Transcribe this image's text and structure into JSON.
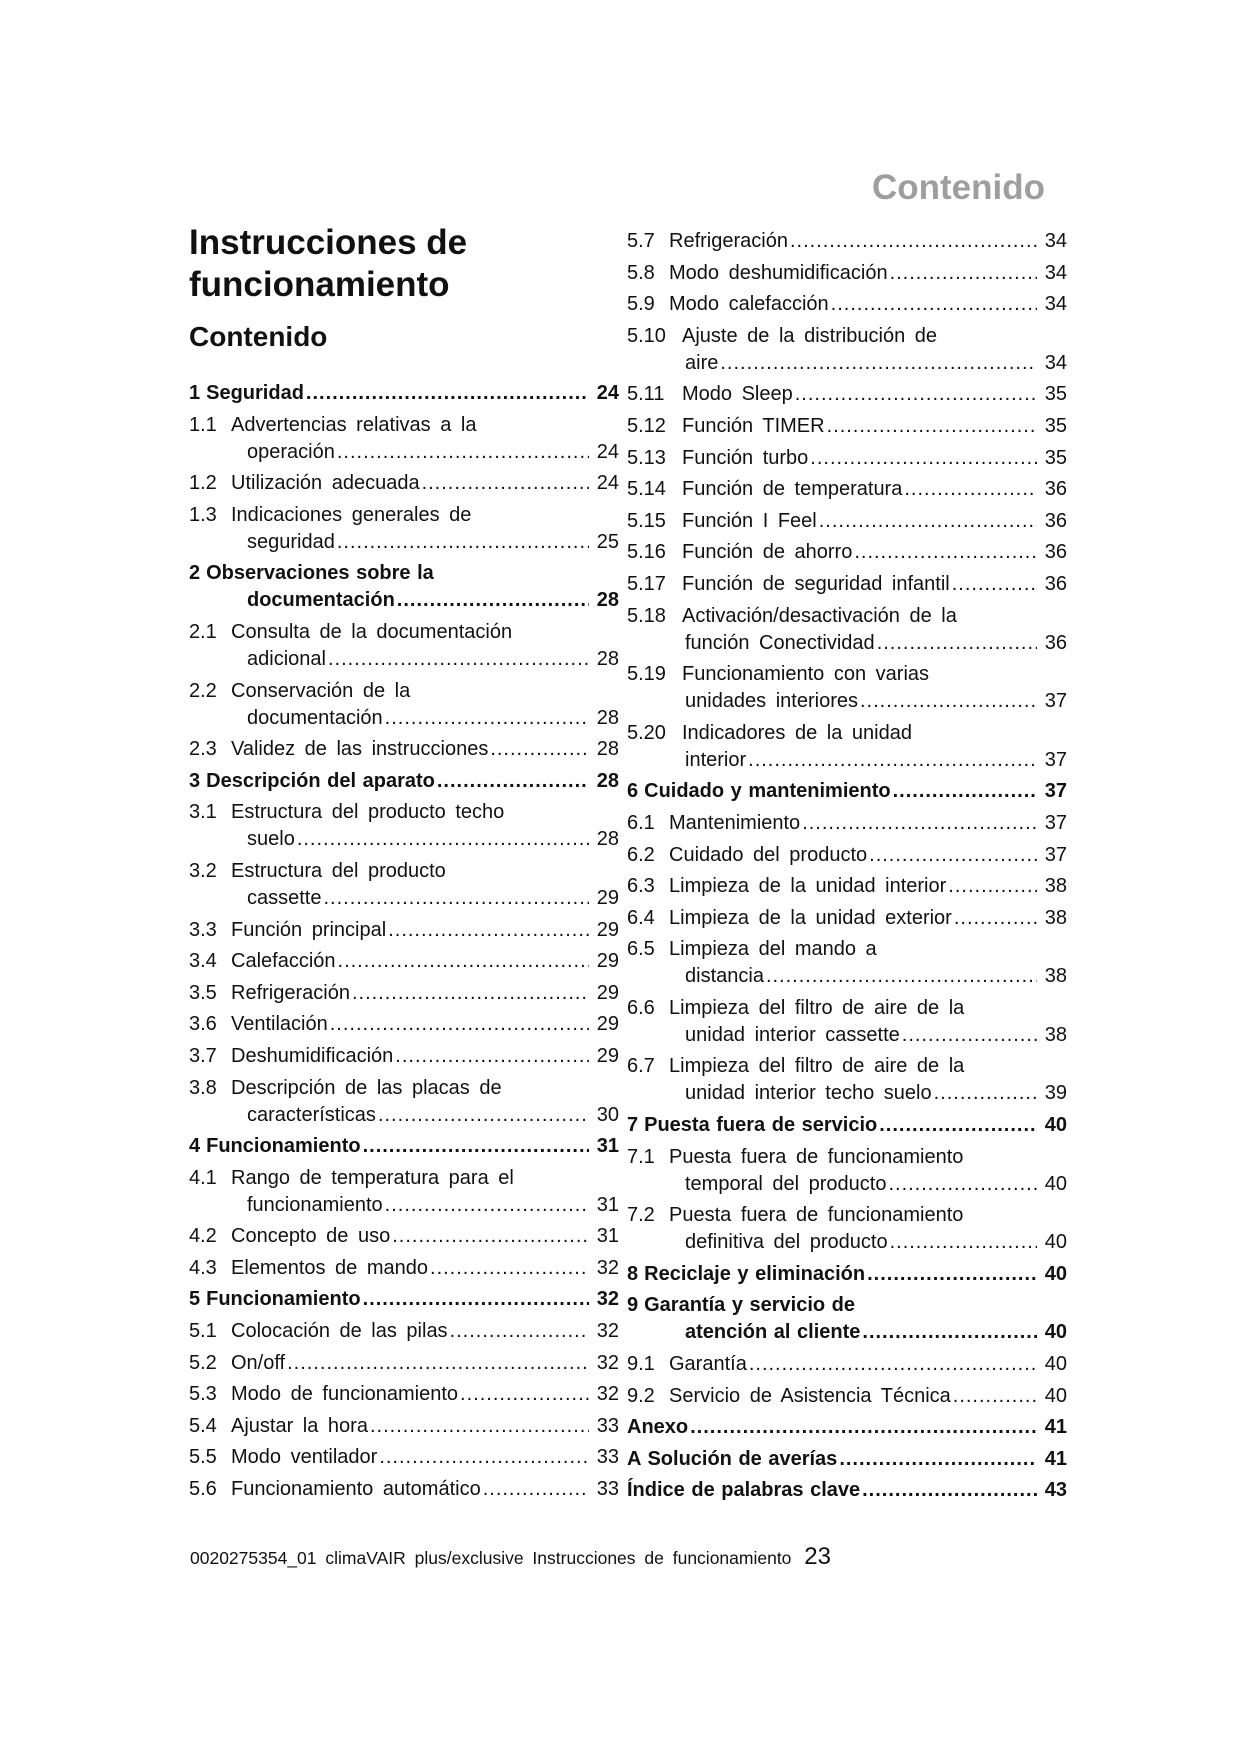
{
  "header": {
    "section": "Contenido"
  },
  "title": {
    "line1": "Instrucciones de",
    "line2": "funcionamiento",
    "subtitle": "Contenido"
  },
  "toc_left": [
    {
      "num": "1",
      "lines": [
        "Seguridad"
      ],
      "page": "24",
      "bold": true
    },
    {
      "num": "1.1",
      "lines": [
        "Advertencias relativas a la",
        "operación"
      ],
      "page": "24"
    },
    {
      "num": "1.2",
      "lines": [
        "Utilización adecuada"
      ],
      "page": "24"
    },
    {
      "num": "1.3",
      "lines": [
        "Indicaciones generales de",
        "seguridad"
      ],
      "page": "25"
    },
    {
      "num": "2",
      "lines": [
        "Observaciones sobre la",
        "documentación"
      ],
      "page": "28",
      "bold": true
    },
    {
      "num": "2.1",
      "lines": [
        "Consulta de la documentación",
        "adicional"
      ],
      "page": "28"
    },
    {
      "num": "2.2",
      "lines": [
        "Conservación de la",
        "documentación"
      ],
      "page": "28"
    },
    {
      "num": "2.3",
      "lines": [
        "Validez de las instrucciones"
      ],
      "page": "28"
    },
    {
      "num": "3",
      "lines": [
        "Descripción del aparato"
      ],
      "page": "28",
      "bold": true
    },
    {
      "num": "3.1",
      "lines": [
        "Estructura del producto techo",
        "suelo"
      ],
      "page": "28"
    },
    {
      "num": "3.2",
      "lines": [
        "Estructura del producto",
        "cassette"
      ],
      "page": "29"
    },
    {
      "num": "3.3",
      "lines": [
        "Función principal"
      ],
      "page": "29"
    },
    {
      "num": "3.4",
      "lines": [
        "Calefacción"
      ],
      "page": "29"
    },
    {
      "num": "3.5",
      "lines": [
        "Refrigeración"
      ],
      "page": "29"
    },
    {
      "num": "3.6",
      "lines": [
        "Ventilación"
      ],
      "page": "29"
    },
    {
      "num": "3.7",
      "lines": [
        "Deshumidificación"
      ],
      "page": "29"
    },
    {
      "num": "3.8",
      "lines": [
        "Descripción de las placas de",
        "características"
      ],
      "page": "30"
    },
    {
      "num": "4",
      "lines": [
        "Funcionamiento"
      ],
      "page": "31",
      "bold": true
    },
    {
      "num": "4.1",
      "lines": [
        "Rango de temperatura para el",
        "funcionamiento"
      ],
      "page": "31"
    },
    {
      "num": "4.2",
      "lines": [
        "Concepto de uso"
      ],
      "page": "31"
    },
    {
      "num": "4.3",
      "lines": [
        "Elementos de mando"
      ],
      "page": "32"
    },
    {
      "num": "5",
      "lines": [
        "Funcionamiento"
      ],
      "page": "32",
      "bold": true
    },
    {
      "num": "5.1",
      "lines": [
        "Colocación de las pilas"
      ],
      "page": "32"
    },
    {
      "num": "5.2",
      "lines": [
        "On/off"
      ],
      "page": "32"
    },
    {
      "num": "5.3",
      "lines": [
        "Modo de funcionamiento"
      ],
      "page": "32"
    },
    {
      "num": "5.4",
      "lines": [
        "Ajustar la hora"
      ],
      "page": "33"
    },
    {
      "num": "5.5",
      "lines": [
        "Modo ventilador"
      ],
      "page": "33"
    },
    {
      "num": "5.6",
      "lines": [
        "Funcionamiento automático"
      ],
      "page": "33"
    }
  ],
  "toc_right": [
    {
      "num": "5.7",
      "lines": [
        "Refrigeración"
      ],
      "page": "34"
    },
    {
      "num": "5.8",
      "lines": [
        "Modo deshumidificación"
      ],
      "page": "34"
    },
    {
      "num": "5.9",
      "lines": [
        "Modo calefacción"
      ],
      "page": "34"
    },
    {
      "num": "5.10",
      "lines": [
        "Ajuste de la distribución de",
        "aire"
      ],
      "page": "34"
    },
    {
      "num": "5.11",
      "lines": [
        "Modo Sleep"
      ],
      "page": "35"
    },
    {
      "num": "5.12",
      "lines": [
        "Función TIMER"
      ],
      "page": "35"
    },
    {
      "num": "5.13",
      "lines": [
        "Función turbo"
      ],
      "page": "35"
    },
    {
      "num": "5.14",
      "lines": [
        "Función de temperatura"
      ],
      "page": "36"
    },
    {
      "num": "5.15",
      "lines": [
        "Función I Feel"
      ],
      "page": "36"
    },
    {
      "num": "5.16",
      "lines": [
        "Función de ahorro"
      ],
      "page": "36"
    },
    {
      "num": "5.17",
      "lines": [
        "Función de seguridad infantil"
      ],
      "page": "36"
    },
    {
      "num": "5.18",
      "lines": [
        "Activación/desactivación de la",
        "función Conectividad"
      ],
      "page": "36"
    },
    {
      "num": "5.19",
      "lines": [
        "Funcionamiento con varias",
        "unidades interiores"
      ],
      "page": "37"
    },
    {
      "num": "5.20",
      "lines": [
        "Indicadores de la unidad",
        "interior"
      ],
      "page": "37"
    },
    {
      "num": "6",
      "lines": [
        "Cuidado y mantenimiento"
      ],
      "page": "37",
      "bold": true
    },
    {
      "num": "6.1",
      "lines": [
        "Mantenimiento"
      ],
      "page": "37"
    },
    {
      "num": "6.2",
      "lines": [
        "Cuidado del producto"
      ],
      "page": "37"
    },
    {
      "num": "6.3",
      "lines": [
        "Limpieza de la unidad interior"
      ],
      "page": "38"
    },
    {
      "num": "6.4",
      "lines": [
        "Limpieza de la unidad exterior"
      ],
      "page": "38"
    },
    {
      "num": "6.5",
      "lines": [
        "Limpieza del mando a",
        "distancia"
      ],
      "page": "38"
    },
    {
      "num": "6.6",
      "lines": [
        "Limpieza del filtro de aire de la",
        "unidad interior cassette"
      ],
      "page": "38"
    },
    {
      "num": "6.7",
      "lines": [
        "Limpieza del filtro de aire de la",
        "unidad interior techo suelo"
      ],
      "page": "39"
    },
    {
      "num": "7",
      "lines": [
        "Puesta fuera de servicio"
      ],
      "page": "40",
      "bold": true
    },
    {
      "num": "7.1",
      "lines": [
        "Puesta fuera de funcionamiento",
        "temporal del producto"
      ],
      "page": "40"
    },
    {
      "num": "7.2",
      "lines": [
        "Puesta fuera de funcionamiento",
        "definitiva del producto"
      ],
      "page": "40"
    },
    {
      "num": "8",
      "lines": [
        "Reciclaje y eliminación"
      ],
      "page": "40",
      "bold": true
    },
    {
      "num": "9",
      "lines": [
        "Garantía y servicio de",
        "atención al cliente"
      ],
      "page": "40",
      "bold": true
    },
    {
      "num": "9.1",
      "lines": [
        "Garantía"
      ],
      "page": "40"
    },
    {
      "num": "9.2",
      "lines": [
        "Servicio de Asistencia Técnica"
      ],
      "page": "40"
    },
    {
      "num": "",
      "lines": [
        "Anexo"
      ],
      "page": "41",
      "bold": true
    },
    {
      "num": "A",
      "lines": [
        "Solución de averías"
      ],
      "page": "41",
      "bold": true
    },
    {
      "num": "",
      "lines": [
        "Índice de palabras clave"
      ],
      "page": "43",
      "bold": true
    }
  ],
  "footer": {
    "text": "0020275354_01 climaVAIR plus/exclusive Instrucciones de funcionamiento",
    "page_number": "23"
  }
}
